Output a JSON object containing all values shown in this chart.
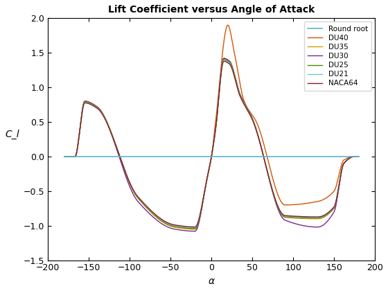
{
  "title": "Lift Coefficient versus Angle of Attack",
  "xlabel": "α",
  "ylabel": "C_l",
  "xlim": [
    -200,
    200
  ],
  "ylim": [
    -1.5,
    2.0
  ],
  "xticks": [
    -200,
    -150,
    -100,
    -50,
    0,
    50,
    100,
    150,
    200
  ],
  "yticks": [
    -1.5,
    -1.0,
    -0.5,
    0.0,
    0.5,
    1.0,
    1.5,
    2.0
  ],
  "legend_labels": [
    "Round root",
    "DU40",
    "DU35",
    "DU30",
    "DU25",
    "DU21",
    "NACA64"
  ],
  "colors": {
    "Round root": "#5ab4d6",
    "DU40": "#d45500",
    "DU35": "#c8a000",
    "DU30": "#7b2a8b",
    "DU25": "#4a8a00",
    "DU21": "#70c8d4",
    "NACA64": "#8b1a1a"
  },
  "legend_loc": "upper right"
}
